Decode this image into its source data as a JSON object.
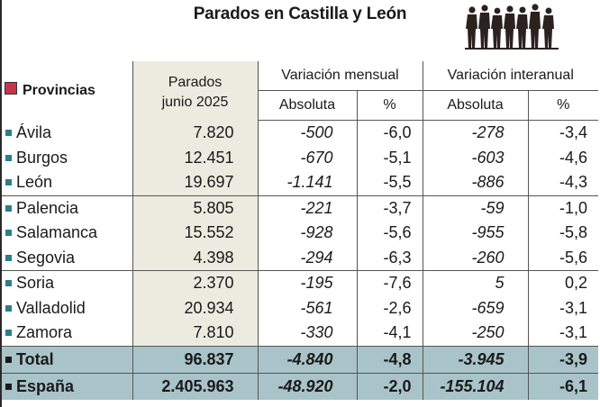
{
  "title": "Parados en Castilla y León",
  "icons": {
    "people": "people-queue-icon",
    "legend_square": "red-square-icon",
    "bullet": "teal-bullet-icon"
  },
  "colors": {
    "accent_square": "#c8334a",
    "bullet": "#2e7d8c",
    "column_bg": "#ebebdf",
    "total_bg": "#a9c4c9"
  },
  "headers": {
    "provincias": "Provincias",
    "parados_line1": "Parados",
    "parados_line2": "junio 2025",
    "mensual": "Variación mensual",
    "interanual": "Variación interanual",
    "absoluta": "Absoluta",
    "pct": "%"
  },
  "rows": [
    {
      "name": "Ávila",
      "parados": "7.820",
      "mens_abs": "-500",
      "mens_pct": "-6,0",
      "inter_abs": "-278",
      "inter_pct": "-3,4"
    },
    {
      "name": "Burgos",
      "parados": "12.451",
      "mens_abs": "-670",
      "mens_pct": "-5,1",
      "inter_abs": "-603",
      "inter_pct": "-4,6"
    },
    {
      "name": "León",
      "parados": "19.697",
      "mens_abs": "-1.141",
      "mens_pct": "-5,5",
      "inter_abs": "-886",
      "inter_pct": "-4,3"
    },
    {
      "name": "Palencia",
      "parados": "5.805",
      "mens_abs": "-221",
      "mens_pct": "-3,7",
      "inter_abs": "-59",
      "inter_pct": "-1,0"
    },
    {
      "name": "Salamanca",
      "parados": "15.552",
      "mens_abs": "-928",
      "mens_pct": "-5,6",
      "inter_abs": "-955",
      "inter_pct": "-5,8"
    },
    {
      "name": "Segovia",
      "parados": "4.398",
      "mens_abs": "-294",
      "mens_pct": "-6,3",
      "inter_abs": "-260",
      "inter_pct": "-5,6"
    },
    {
      "name": "Soria",
      "parados": "2.370",
      "mens_abs": "-195",
      "mens_pct": "-7,6",
      "inter_abs": "5",
      "inter_pct": "0,2"
    },
    {
      "name": "Valladolid",
      "parados": "20.934",
      "mens_abs": "-561",
      "mens_pct": "-2,6",
      "inter_abs": "-659",
      "inter_pct": "-3,1"
    },
    {
      "name": "Zamora",
      "parados": "7.810",
      "mens_abs": "-330",
      "mens_pct": "-4,1",
      "inter_abs": "-250",
      "inter_pct": "-3,1"
    }
  ],
  "totals": [
    {
      "name": "Total",
      "parados": "96.837",
      "mens_abs": "-4.840",
      "mens_pct": "-4,8",
      "inter_abs": "-3.945",
      "inter_pct": "-3,9"
    },
    {
      "name": "España",
      "parados": "2.405.963",
      "mens_abs": "-48.920",
      "mens_pct": "-2,0",
      "inter_abs": "-155.104",
      "inter_pct": "-6,1"
    }
  ]
}
